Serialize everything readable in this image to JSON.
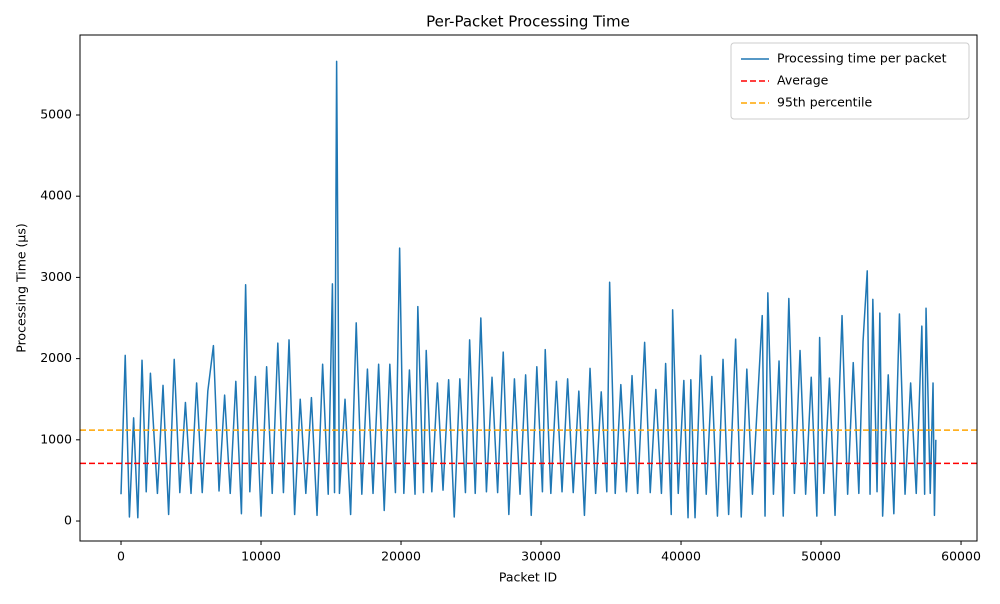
{
  "chart_data": {
    "type": "line",
    "title": "Per-Packet Processing Time",
    "x_label": "Packet ID",
    "y_label": "Processing Time (μs)",
    "x": [
      0,
      300,
      600,
      900,
      1200,
      1500,
      1800,
      2100,
      2600,
      3000,
      3400,
      3800,
      4200,
      4600,
      5000,
      5400,
      5800,
      6200,
      6600,
      7000,
      7400,
      7800,
      8200,
      8600,
      8900,
      9200,
      9600,
      10000,
      10400,
      10800,
      11200,
      11600,
      12000,
      12400,
      12800,
      13200,
      13600,
      14000,
      14400,
      14800,
      15100,
      15250,
      15400,
      15600,
      16000,
      16400,
      16800,
      17200,
      17600,
      18000,
      18400,
      18800,
      19200,
      19600,
      19900,
      20200,
      20600,
      21000,
      21200,
      21600,
      21800,
      22200,
      22600,
      23000,
      23400,
      23800,
      24200,
      24600,
      24900,
      25300,
      25700,
      26100,
      26500,
      26900,
      27300,
      27700,
      28100,
      28500,
      28900,
      29300,
      29700,
      30100,
      30300,
      30700,
      31100,
      31500,
      31900,
      32300,
      32700,
      33100,
      33500,
      33900,
      34300,
      34700,
      34900,
      35300,
      35700,
      36100,
      36500,
      36900,
      37400,
      37800,
      38200,
      38600,
      38900,
      39300,
      39400,
      39800,
      40200,
      40500,
      40700,
      41000,
      41400,
      41800,
      42200,
      42600,
      43000,
      43400,
      43900,
      44300,
      44700,
      45100,
      45800,
      46000,
      46200,
      46600,
      47000,
      47300,
      47700,
      48100,
      48500,
      48900,
      49300,
      49700,
      49900,
      50200,
      50600,
      51000,
      51500,
      51900,
      52300,
      52700,
      53000,
      53300,
      53500,
      53700,
      54000,
      54200,
      54400,
      54800,
      55200,
      55600,
      56000,
      56400,
      56800,
      57200,
      57400,
      57500,
      57800,
      58000,
      58100,
      58200
    ],
    "series": [
      {
        "name": "Processing time per packet",
        "color": "#1f77b4",
        "values": [
          330,
          2040,
          50,
          1270,
          40,
          1980,
          360,
          1820,
          340,
          1670,
          80,
          1990,
          350,
          1460,
          340,
          1700,
          350,
          1600,
          2160,
          370,
          1550,
          340,
          1720,
          90,
          2910,
          360,
          1780,
          60,
          1900,
          340,
          2190,
          350,
          2230,
          80,
          1500,
          340,
          1520,
          70,
          1930,
          330,
          2920,
          350,
          5660,
          340,
          1500,
          80,
          2440,
          330,
          1870,
          340,
          1930,
          130,
          1930,
          350,
          3360,
          340,
          1860,
          330,
          2640,
          350,
          2100,
          360,
          1700,
          380,
          1740,
          50,
          1750,
          350,
          2230,
          340,
          2500,
          360,
          1770,
          350,
          2080,
          80,
          1750,
          330,
          1800,
          70,
          1900,
          360,
          2110,
          340,
          1720,
          360,
          1750,
          350,
          1600,
          70,
          1880,
          340,
          1590,
          360,
          2940,
          340,
          1680,
          360,
          1790,
          340,
          2200,
          350,
          1620,
          340,
          1940,
          80,
          2600,
          340,
          1730,
          40,
          1740,
          40,
          2040,
          330,
          1780,
          60,
          1990,
          80,
          2240,
          50,
          1870,
          330,
          2530,
          60,
          2810,
          330,
          1970,
          60,
          2740,
          340,
          2100,
          330,
          1770,
          60,
          2260,
          340,
          1760,
          70,
          2530,
          330,
          1950,
          340,
          2210,
          3080,
          330,
          2730,
          360,
          2560,
          60,
          1800,
          90,
          2550,
          330,
          1700,
          340,
          2400,
          330,
          2620,
          340,
          1700,
          70,
          1000
        ]
      }
    ],
    "hlines": [
      {
        "name": "Average",
        "color": "#ff0000",
        "value": 710
      },
      {
        "name": "95th percentile",
        "color": "#ffa500",
        "value": 1120
      }
    ],
    "xlim": [
      -2930,
      61140
    ],
    "ylim": [
      -246,
      5985
    ],
    "xticks": [
      0,
      10000,
      20000,
      30000,
      40000,
      50000,
      60000
    ],
    "yticks": [
      0,
      1000,
      2000,
      3000,
      4000,
      5000
    ],
    "legend": "upper right",
    "grid": false
  }
}
